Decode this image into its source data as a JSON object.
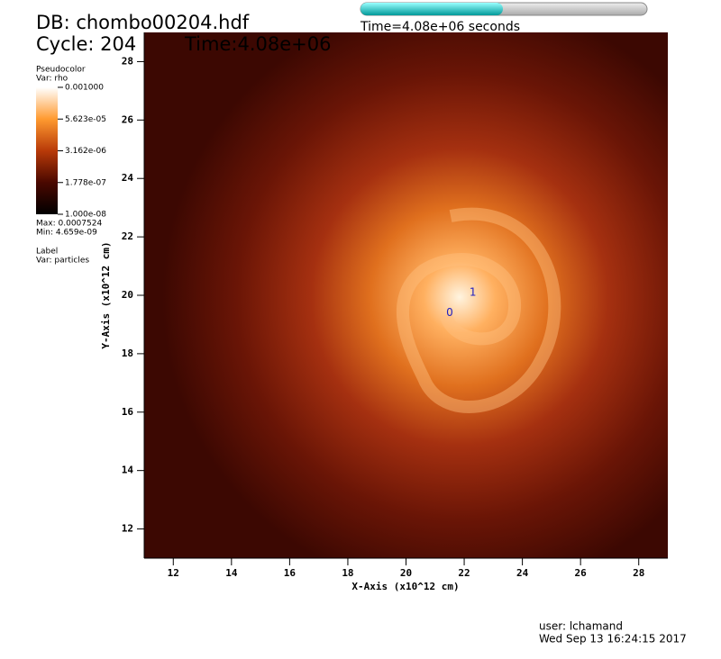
{
  "chart_data": {
    "type": "pseudocolor",
    "db_label": "DB: chombo00204.hdf",
    "cycle_label": "Cycle: 204",
    "time_label": "Time:4.08e+06",
    "slider_label": "Time=4.08e+06 seconds",
    "xlabel": "X-Axis (x10^12 cm)",
    "ylabel": "Y-Axis (x10^12 cm)",
    "xlim": [
      11,
      29
    ],
    "ylim": [
      11,
      29
    ],
    "xticks": [
      12,
      14,
      16,
      18,
      20,
      22,
      24,
      26,
      28
    ],
    "yticks": [
      12,
      14,
      16,
      18,
      20,
      22,
      24,
      26,
      28
    ],
    "legend": {
      "title": "Pseudocolor",
      "var": "Var: rho",
      "log": true,
      "range": [
        1e-08,
        0.001
      ],
      "ticks": [
        {
          "value": 0.001,
          "label": "0.001000"
        },
        {
          "value": 5.623e-05,
          "label": "5.623e-05"
        },
        {
          "value": 3.162e-06,
          "label": "3.162e-06"
        },
        {
          "value": 1.778e-07,
          "label": "1.778e-07"
        },
        {
          "value": 1e-08,
          "label": "1.000e-08"
        }
      ],
      "max": "Max:  0.0007524",
      "min": "Min:  4.659e-09"
    },
    "label_legend": {
      "title": "Label",
      "var": "Var: particles"
    },
    "particles": {
      "names": [
        "0",
        "1"
      ],
      "x": [
        21.5,
        22.3
      ],
      "y": [
        19.4,
        20.1
      ]
    },
    "user": "user: lchamand",
    "date": "Wed Sep 13 16:24:15 2017"
  }
}
